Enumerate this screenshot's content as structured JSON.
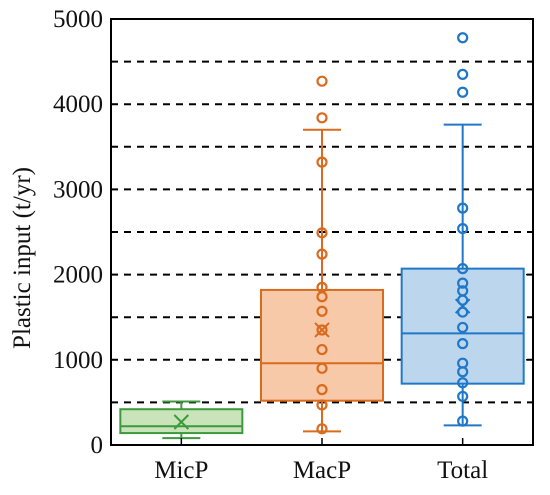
{
  "chart_data": {
    "type": "box",
    "ylabel": "Plastic input (t/yr)",
    "xlabel": "",
    "ylim": [
      0,
      5000
    ],
    "yticks": [
      0,
      1000,
      2000,
      3000,
      4000,
      5000
    ],
    "grid": "horizontal dashed every 500",
    "categories": [
      "MicP",
      "MacP",
      "Total"
    ],
    "series": [
      {
        "name": "MicP",
        "color": "#3c9a3c",
        "fill": "#c9e3ba",
        "whisker_low": 80,
        "q1": 140,
        "median": 220,
        "q3": 420,
        "whisker_high": 510,
        "mean": 270,
        "points": []
      },
      {
        "name": "MacP",
        "color": "#d96a1e",
        "fill": "#f7c9a8",
        "whisker_low": 160,
        "q1": 520,
        "median": 960,
        "q3": 1820,
        "whisker_high": 3700,
        "mean": 1350,
        "points": [
          190,
          470,
          650,
          900,
          1120,
          1350,
          1570,
          1740,
          1850,
          2240,
          2490,
          3320,
          3840,
          4270
        ]
      },
      {
        "name": "Total",
        "color": "#1f78c8",
        "fill": "#bcd6ee",
        "whisker_low": 230,
        "q1": 720,
        "median": 1310,
        "q3": 2070,
        "whisker_high": 3760,
        "mean": 1630,
        "points": [
          280,
          570,
          730,
          860,
          960,
          1190,
          1380,
          1560,
          1700,
          1810,
          1900,
          2070,
          2540,
          2780,
          4140,
          4350,
          4780
        ]
      }
    ]
  }
}
